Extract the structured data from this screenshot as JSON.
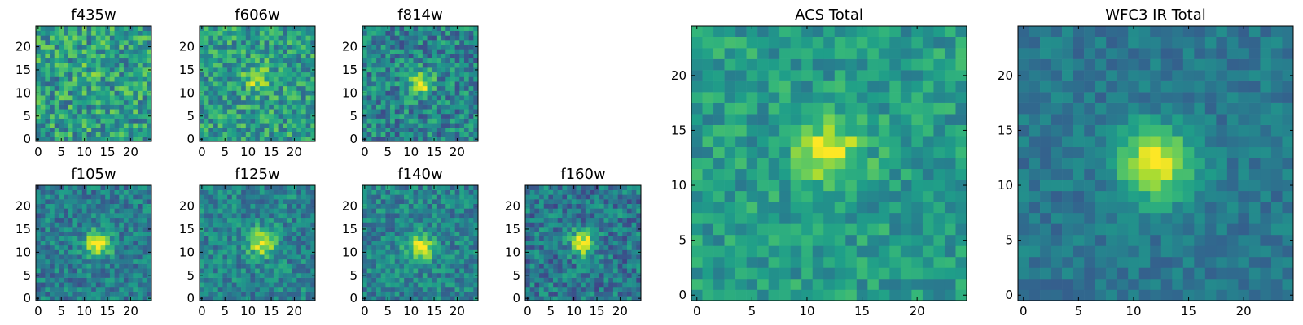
{
  "chart_data": [
    {
      "type": "heatmap",
      "title": "f435w",
      "xlim": [
        0,
        24
      ],
      "ylim": [
        0,
        24
      ],
      "xticks": [
        0,
        5,
        10,
        15,
        20
      ],
      "yticks": [
        0,
        5,
        10,
        15,
        20
      ],
      "grid": false,
      "source_peak": [
        13,
        16
      ],
      "peak_strength": 0.12,
      "source_sigma": 2.2,
      "background": 0.55,
      "noise": 0.5,
      "seed": 11
    },
    {
      "type": "heatmap",
      "title": "f606w",
      "xlim": [
        0,
        24
      ],
      "ylim": [
        0,
        24
      ],
      "xticks": [
        0,
        5,
        10,
        15,
        20
      ],
      "yticks": [
        0,
        5,
        10,
        15,
        20
      ],
      "grid": false,
      "source_peak": [
        12,
        13
      ],
      "peak_strength": 0.3,
      "source_sigma": 2.0,
      "background": 0.55,
      "noise": 0.45,
      "seed": 23
    },
    {
      "type": "heatmap",
      "title": "f814w",
      "xlim": [
        0,
        24
      ],
      "ylim": [
        0,
        24
      ],
      "xticks": [
        0,
        5,
        10,
        15,
        20
      ],
      "yticks": [
        0,
        5,
        10,
        15,
        20
      ],
      "grid": false,
      "source_peak": [
        12,
        12
      ],
      "peak_strength": 0.5,
      "source_sigma": 1.8,
      "background": 0.45,
      "noise": 0.45,
      "seed": 37
    },
    {
      "type": "heatmap",
      "title": "f105w",
      "xlim": [
        0,
        24
      ],
      "ylim": [
        0,
        24
      ],
      "xticks": [
        0,
        5,
        10,
        15,
        20
      ],
      "yticks": [
        0,
        5,
        10,
        15,
        20
      ],
      "grid": false,
      "source_peak": [
        13,
        12
      ],
      "peak_strength": 0.6,
      "source_sigma": 2.0,
      "background": 0.42,
      "noise": 0.35,
      "seed": 41
    },
    {
      "type": "heatmap",
      "title": "f125w",
      "xlim": [
        0,
        24
      ],
      "ylim": [
        0,
        24
      ],
      "xticks": [
        0,
        5,
        10,
        15,
        20
      ],
      "yticks": [
        0,
        5,
        10,
        15,
        20
      ],
      "grid": false,
      "source_peak": [
        13,
        12
      ],
      "peak_strength": 0.5,
      "source_sigma": 2.1,
      "background": 0.45,
      "noise": 0.35,
      "seed": 53
    },
    {
      "type": "heatmap",
      "title": "f140w",
      "xlim": [
        0,
        24
      ],
      "ylim": [
        0,
        24
      ],
      "xticks": [
        0,
        5,
        10,
        15,
        20
      ],
      "yticks": [
        0,
        5,
        10,
        15,
        20
      ],
      "grid": false,
      "source_peak": [
        12,
        11
      ],
      "peak_strength": 0.5,
      "source_sigma": 2.1,
      "background": 0.45,
      "noise": 0.35,
      "seed": 67
    },
    {
      "type": "heatmap",
      "title": "f160w",
      "xlim": [
        0,
        24
      ],
      "ylim": [
        0,
        24
      ],
      "xticks": [
        0,
        5,
        10,
        15,
        20
      ],
      "yticks": [
        0,
        5,
        10,
        15,
        20
      ],
      "grid": false,
      "source_peak": [
        12,
        12
      ],
      "peak_strength": 0.6,
      "source_sigma": 1.9,
      "background": 0.4,
      "noise": 0.4,
      "seed": 71
    },
    {
      "type": "heatmap",
      "title": "ACS Total",
      "xlim": [
        0,
        24
      ],
      "ylim": [
        0,
        24
      ],
      "xticks": [
        0,
        5,
        10,
        15,
        20
      ],
      "yticks": [
        0,
        5,
        10,
        15,
        20
      ],
      "grid": false,
      "source_peak": [
        12,
        13
      ],
      "peak_strength": 0.45,
      "source_sigma": 2.0,
      "background": 0.55,
      "noise": 0.3,
      "seed": 83
    },
    {
      "type": "heatmap",
      "title": "WFC3 IR Total",
      "xlim": [
        0,
        24
      ],
      "ylim": [
        0,
        24
      ],
      "xticks": [
        0,
        5,
        10,
        15,
        20
      ],
      "yticks": [
        0,
        5,
        10,
        15,
        20
      ],
      "grid": false,
      "source_peak": [
        12,
        12
      ],
      "peak_strength": 0.6,
      "source_sigma": 2.3,
      "background": 0.4,
      "noise": 0.2,
      "seed": 97
    }
  ],
  "colormap": [
    "#440154",
    "#482878",
    "#3e4989",
    "#31688e",
    "#26828e",
    "#1f9e89",
    "#35b779",
    "#6ece58",
    "#b5de2b",
    "#fde725"
  ]
}
